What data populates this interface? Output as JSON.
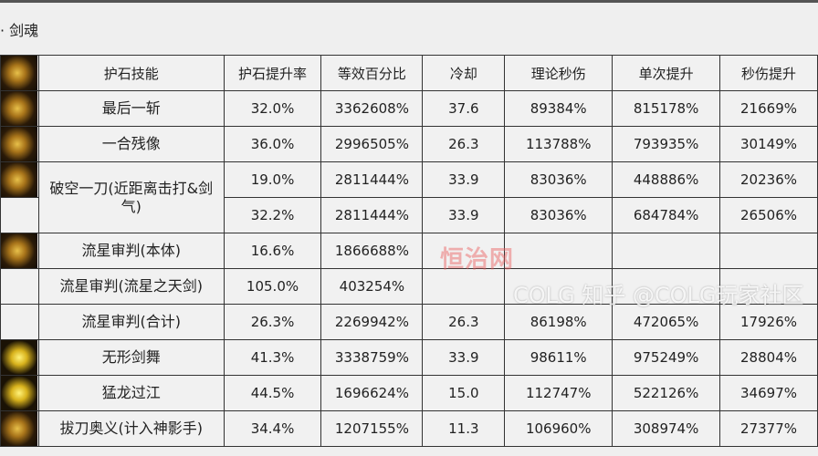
{
  "section_title": "· 剑魂",
  "headers": [
    "护石技能",
    "护石提升率",
    "等效百分比",
    "冷却",
    "理论秒伤",
    "单次提升",
    "秒伤提升"
  ],
  "rows": [
    {
      "skill": "最后一斩",
      "rate": "32.0%",
      "equiv": "3362608%",
      "cd": "37.6",
      "dps": "89384%",
      "single": "815178%",
      "dps_up": "21669%"
    },
    {
      "skill": "一合残像",
      "rate": "36.0%",
      "equiv": "2996505%",
      "cd": "26.3",
      "dps": "113788%",
      "single": "793935%",
      "dps_up": "30149%"
    },
    {
      "skill": "破空一刀(近距离击打&剑气)",
      "rate": "19.0%",
      "equiv": "2811444%",
      "cd": "33.9",
      "dps": "83036%",
      "single": "448886%",
      "dps_up": "20236%"
    },
    {
      "skill": "",
      "rate": "32.2%",
      "equiv": "2811444%",
      "cd": "33.9",
      "dps": "83036%",
      "single": "684784%",
      "dps_up": "26506%"
    },
    {
      "skill": "流星审判(本体)",
      "rate": "16.6%",
      "equiv": "1866688%",
      "cd": "",
      "dps": "",
      "single": "",
      "dps_up": ""
    },
    {
      "skill": "流星审判(流星之天剑)",
      "rate": "105.0%",
      "equiv": "403254%",
      "cd": "",
      "dps": "",
      "single": "",
      "dps_up": ""
    },
    {
      "skill": "流星审判(合计)",
      "rate": "26.3%",
      "equiv": "2269942%",
      "cd": "26.3",
      "dps": "86198%",
      "single": "472065%",
      "dps_up": "17926%"
    },
    {
      "skill": "无形剑舞",
      "rate": "41.3%",
      "equiv": "3338759%",
      "cd": "33.9",
      "dps": "98611%",
      "single": "975249%",
      "dps_up": "28804%"
    },
    {
      "skill": "猛龙过江",
      "rate": "44.5%",
      "equiv": "1696624%",
      "cd": "15.0",
      "dps": "112747%",
      "single": "522126%",
      "dps_up": "34697%"
    },
    {
      "skill": "拔刀奥义(计入神影手)",
      "rate": "34.4%",
      "equiv": "1207155%",
      "cd": "11.3",
      "dps": "106960%",
      "single": "308974%",
      "dps_up": "27377%"
    }
  ],
  "watermarks": {
    "site": "恒治网",
    "source": "COLG 知乎 @COLG玩家社区"
  }
}
